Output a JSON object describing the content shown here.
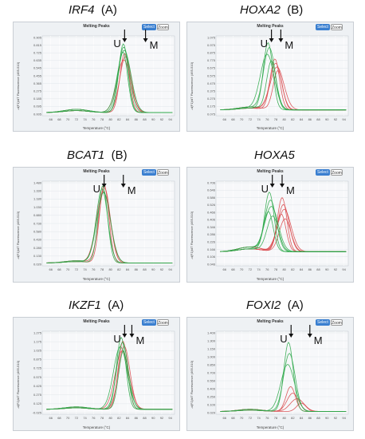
{
  "colors": {
    "background": "#eef1f4",
    "grid": "#ffffff",
    "green": "#2ea84a",
    "red": "#d9484b",
    "select": "#3a7fd0"
  },
  "chart_data": [
    {
      "type": "line",
      "gene": "IRF4",
      "group": "(A)",
      "panel_title": "Melting Peaks",
      "select_label": "Select",
      "zoom_label": "Zoom",
      "ylabel": "-d(F1)/dT Fluorescence (465-510)",
      "xlabel": "Temperature (°C)",
      "xlim": [
        64,
        95
      ],
      "ylim": [
        0,
        1.0
      ],
      "x_ticks": [
        66,
        68,
        70,
        72,
        74,
        76,
        78,
        80,
        82,
        84,
        86,
        88,
        90,
        92,
        94
      ],
      "y_ticks": [
        "0.905",
        "0.815",
        "0.725",
        "0.635",
        "0.545",
        "0.455",
        "0.365",
        "0.275",
        "0.185",
        "0.095",
        "0.005"
      ],
      "peaks": {
        "green": [
          83.0,
          83.1,
          83.2,
          82.9
        ],
        "red": [
          83.3,
          83.5,
          83.1
        ]
      },
      "peak_heights": {
        "green": [
          0.9,
          0.86,
          0.82,
          0.8
        ],
        "red": [
          0.78,
          0.74,
          0.7
        ]
      },
      "baseline": 0.04,
      "annotations": {
        "U": {
          "label": "U",
          "x": 83.3
        },
        "M": {
          "label": "M",
          "x": 88.2
        }
      }
    },
    {
      "type": "line",
      "gene": "HOXA2",
      "group": "(B)",
      "panel_title": "Melting Peaks",
      "select_label": "Select",
      "zoom_label": "Zoom",
      "ylabel": "-d(F1)/dT Fluorescence (465-510)",
      "xlabel": "Temperature (°C)",
      "xlim": [
        64,
        95
      ],
      "ylim": [
        0,
        1.1
      ],
      "x_ticks": [
        66,
        68,
        70,
        72,
        74,
        76,
        78,
        80,
        82,
        84,
        86,
        88,
        90,
        92,
        94
      ],
      "y_ticks": [
        "1.075",
        "0.975",
        "0.875",
        "0.775",
        "0.675",
        "0.575",
        "0.475",
        "0.375",
        "0.275",
        "0.175",
        "0.075"
      ],
      "peaks": {
        "green": [
          76.2,
          76.5,
          76.0,
          77.0
        ],
        "red": [
          77.8,
          78.0,
          78.3,
          78.5
        ]
      },
      "peak_heights": {
        "green": [
          1.0,
          0.93,
          0.84,
          0.75
        ],
        "red": [
          0.78,
          0.72,
          0.67,
          0.62
        ]
      },
      "baseline": 0.08,
      "annotations": {
        "U": {
          "label": "U",
          "x": 77.0
        },
        "M": {
          "label": "M",
          "x": 79.2
        }
      }
    },
    {
      "type": "line",
      "gene": "BCAT1",
      "group": "(B)",
      "panel_title": "Melting Peaks",
      "select_label": "Select",
      "zoom_label": "Zoom",
      "ylabel": "-d(F1)/dT Fluorescence (465-510)",
      "xlabel": "Temperature (°C)",
      "xlim": [
        64,
        95
      ],
      "ylim": [
        0,
        1.5
      ],
      "x_ticks": [
        66,
        68,
        70,
        72,
        74,
        76,
        78,
        80,
        82,
        84,
        86,
        88,
        90,
        92,
        94
      ],
      "y_ticks": [
        "1.480",
        "1.330",
        "1.180",
        "1.030",
        "0.880",
        "0.730",
        "0.580",
        "0.430",
        "0.280",
        "0.130",
        "0.020"
      ],
      "peaks": {
        "green": [
          78.2,
          78.0,
          78.4
        ],
        "red": [
          78.5,
          78.6,
          78.3
        ]
      },
      "peak_heights": {
        "green": [
          1.42,
          1.36,
          1.3
        ],
        "red": [
          1.44,
          1.38,
          1.32
        ]
      },
      "baseline": 0.05,
      "annotations": {
        "U": {
          "label": "U",
          "x": 78.5
        },
        "M": {
          "label": "M",
          "x": 83.0
        }
      }
    },
    {
      "type": "line",
      "gene": "HOXA5",
      "group": "",
      "panel_title": "Melting Peaks",
      "select_label": "Select",
      "zoom_label": "Zoom",
      "ylabel": "-d(F1)/dT Fluorescence (465-510)",
      "xlabel": "Temperature (°C)",
      "xlim": [
        64,
        95
      ],
      "ylim": [
        0,
        0.72
      ],
      "x_ticks": [
        66,
        68,
        70,
        72,
        74,
        76,
        78,
        80,
        82,
        84,
        86,
        88,
        90,
        92,
        94
      ],
      "y_ticks": [
        "0.706",
        "0.646",
        "0.586",
        "0.526",
        "0.466",
        "0.406",
        "0.346",
        "0.286",
        "0.226",
        "0.166",
        "0.106",
        "0.046"
      ],
      "peaks": {
        "green": [
          76.5,
          76.8,
          77.0,
          76.3,
          77.3
        ],
        "red": [
          79.5,
          79.8,
          80.0,
          79.3,
          80.2
        ]
      },
      "peak_heights": {
        "green": [
          0.62,
          0.55,
          0.5,
          0.45,
          0.42
        ],
        "red": [
          0.58,
          0.52,
          0.48,
          0.44,
          0.4
        ]
      },
      "baseline": 0.12,
      "annotations": {
        "U": {
          "label": "U",
          "x": 77.2
        },
        "M": {
          "label": "M",
          "x": 79.5
        }
      }
    },
    {
      "type": "line",
      "gene": "IKZF1",
      "group": "(A)",
      "panel_title": "Melting Peaks",
      "select_label": "Select",
      "zoom_label": "Zoom",
      "ylabel": "-d(F1)/dT Fluorescence (465-510)",
      "xlabel": "Temperature (°C)",
      "xlim": [
        64,
        95
      ],
      "ylim": [
        -0.05,
        1.3
      ],
      "x_ticks": [
        66,
        68,
        70,
        72,
        74,
        76,
        78,
        80,
        82,
        84,
        86,
        88,
        90,
        92,
        94
      ],
      "y_ticks": [
        "1.275",
        "1.175",
        "1.025",
        "0.875",
        "0.725",
        "0.575",
        "0.425",
        "0.275",
        "0.125",
        "-0.025"
      ],
      "peaks": {
        "green": [
          82.5,
          82.8,
          82.3,
          83.0
        ],
        "red": [
          82.9,
          83.2,
          82.7
        ]
      },
      "peak_heights": {
        "green": [
          1.2,
          1.12,
          1.05,
          0.98
        ],
        "red": [
          1.14,
          1.06,
          0.98
        ]
      },
      "baseline": 0.03,
      "annotations": {
        "U": {
          "label": "U",
          "x": 83.3
        },
        "M": {
          "label": "M",
          "x": 85.0
        }
      }
    },
    {
      "type": "line",
      "gene": "FOXI2",
      "group": "(A)",
      "panel_title": "Melting Peaks",
      "select_label": "Select",
      "zoom_label": "Zoom",
      "ylabel": "-d(F1)/dT Fluorescence (465-510)",
      "xlabel": "Temperature (°C)",
      "xlim": [
        64,
        95
      ],
      "ylim": [
        0,
        1.5
      ],
      "x_ticks": [
        66,
        68,
        70,
        72,
        74,
        76,
        78,
        80,
        82,
        84,
        86,
        88,
        90,
        92,
        94
      ],
      "y_ticks": [
        "1.409",
        "1.309",
        "1.159",
        "1.009",
        "0.859",
        "0.709",
        "0.559",
        "0.409",
        "0.259",
        "0.109",
        "0.029"
      ],
      "peaks": {
        "green": [
          81.0,
          81.2,
          80.8
        ],
        "red": [
          81.5,
          82.0,
          83.0,
          84.0
        ]
      },
      "peak_heights": {
        "green": [
          1.3,
          1.1,
          0.9
        ],
        "red": [
          0.5,
          0.38,
          0.28,
          0.2
        ]
      },
      "baseline": 0.05,
      "annotations": {
        "U": {
          "label": "U",
          "x": 81.6
        },
        "M": {
          "label": "M",
          "x": 86.0
        }
      }
    }
  ]
}
